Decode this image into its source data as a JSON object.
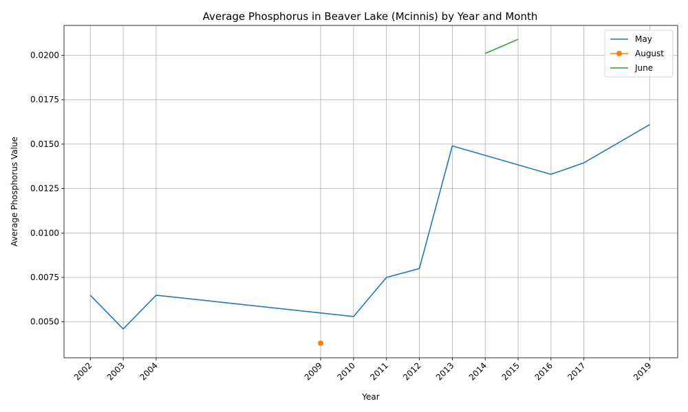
{
  "chart_data": {
    "type": "line",
    "title": "Average Phosphorus in Beaver Lake (Mcinnis) by Year and Month",
    "xlabel": "Year",
    "ylabel": "Average Phosphorus Value",
    "x_ticks": [
      2002,
      2003,
      2004,
      2009,
      2010,
      2011,
      2012,
      2013,
      2014,
      2015,
      2016,
      2017,
      2019
    ],
    "xlim": [
      2001.2,
      2019.85
    ],
    "y_ticks": [
      0.005,
      0.0075,
      0.01,
      0.0125,
      0.015,
      0.0175,
      0.02
    ],
    "y_tick_labels": [
      "0.0050",
      "0.0075",
      "0.0100",
      "0.0125",
      "0.0150",
      "0.0175",
      "0.0200"
    ],
    "ylim": [
      0.00298,
      0.02168
    ],
    "grid": true,
    "legend_position": "top-right",
    "series": [
      {
        "name": "May",
        "color": "#1f77b4",
        "marker": false,
        "x": [
          2002,
          2003,
          2004,
          2010,
          2011,
          2012,
          2013,
          2016,
          2017,
          2019
        ],
        "y": [
          0.0065,
          0.0046,
          0.0065,
          0.0053,
          0.0075,
          0.008,
          0.0149,
          0.0133,
          0.01395,
          0.0161
        ]
      },
      {
        "name": "August",
        "color": "#ff7f0e",
        "marker": true,
        "x": [
          2009
        ],
        "y": [
          0.0038
        ]
      },
      {
        "name": "June",
        "color": "#2ca02c",
        "marker": false,
        "x": [
          2014,
          2015
        ],
        "y": [
          0.0201,
          0.0209
        ]
      }
    ]
  }
}
